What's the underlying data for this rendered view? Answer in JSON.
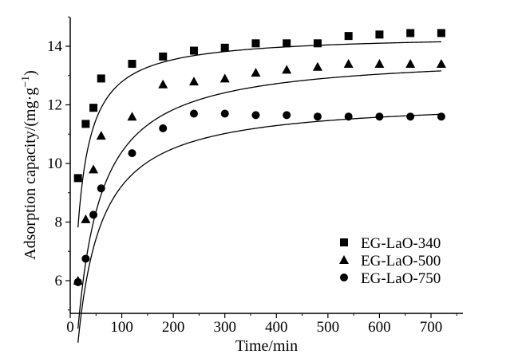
{
  "chart_data": {
    "type": "scatter",
    "xlabel": "Time/min",
    "ylabel_main": "Adsorption capacity/(mg·g",
    "ylabel_sup": "−1",
    "ylabel_close": ")",
    "xlim": [
      0,
      760
    ],
    "ylim": [
      5,
      15
    ],
    "x_ticks": [
      0,
      100,
      200,
      300,
      400,
      500,
      600,
      700
    ],
    "y_ticks": [
      6,
      8,
      10,
      12,
      14
    ],
    "x_tick_labels": [
      "0",
      "100",
      "200",
      "300",
      "400",
      "500",
      "600",
      "700"
    ],
    "y_tick_labels": [
      "6",
      "8",
      "10",
      "12",
      "14"
    ],
    "grid": false,
    "legend_position": "bottom-right",
    "series": [
      {
        "name": "EG-LaO-340",
        "marker": "square",
        "x": [
          15,
          30,
          45,
          60,
          120,
          180,
          240,
          300,
          360,
          420,
          480,
          540,
          600,
          660,
          720
        ],
        "y": [
          9.5,
          11.35,
          11.9,
          12.9,
          13.4,
          13.65,
          13.85,
          13.95,
          14.1,
          14.1,
          14.1,
          14.35,
          14.4,
          14.45,
          14.45
        ],
        "fit": {
          "qe": 14.4,
          "k": 0.0055
        }
      },
      {
        "name": "EG-LaO-500",
        "marker": "triangle",
        "x": [
          15,
          30,
          45,
          60,
          120,
          180,
          240,
          300,
          360,
          420,
          480,
          540,
          600,
          660,
          720
        ],
        "y": [
          6.0,
          8.1,
          9.8,
          10.95,
          11.6,
          12.7,
          12.8,
          12.9,
          13.1,
          13.2,
          13.3,
          13.4,
          13.4,
          13.4,
          13.4
        ],
        "fit": {
          "qe": 13.75,
          "k": 0.00225
        }
      },
      {
        "name": "EG-LaO-750",
        "marker": "circle",
        "x": [
          15,
          30,
          45,
          60,
          120,
          180,
          240,
          300,
          360,
          420,
          480,
          540,
          600,
          660,
          720
        ],
        "y": [
          5.95,
          6.75,
          8.25,
          9.15,
          10.35,
          11.2,
          11.7,
          11.7,
          11.65,
          11.65,
          11.6,
          11.6,
          11.6,
          11.6,
          11.6
        ],
        "fit": {
          "qe": 12.2,
          "k": 0.00255
        }
      }
    ]
  }
}
